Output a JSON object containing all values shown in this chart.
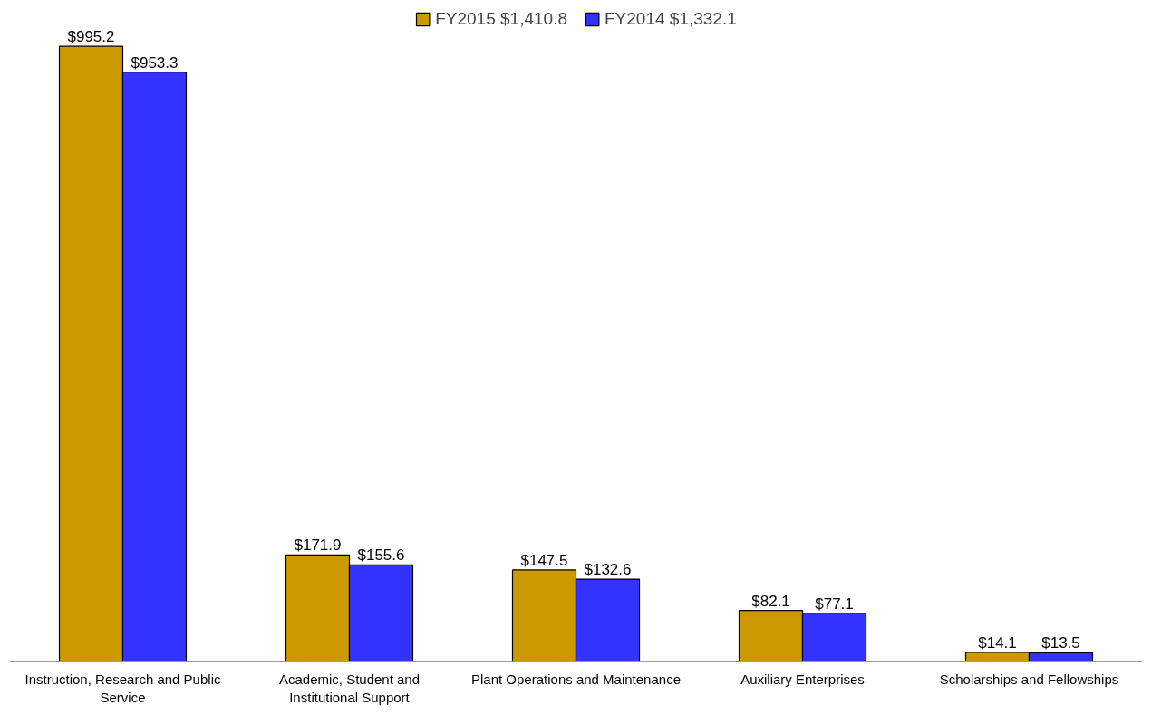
{
  "chart_data": {
    "type": "bar",
    "categories": [
      "Instruction, Research and Public Service",
      "Academic, Student and Institutional Support",
      "Plant Operations and Maintenance",
      "Auxiliary Enterprises",
      "Scholarships and Fellowships"
    ],
    "series": [
      {
        "name": "FY2015 $1,410.8",
        "color": "#cc9900",
        "values": [
          995.2,
          171.9,
          147.5,
          82.1,
          14.1
        ],
        "value_labels": [
          "$995.2",
          "$171.9",
          "$147.5",
          "$82.1",
          "$14.1"
        ]
      },
      {
        "name": "FY2014 $1,332.1",
        "color": "#3333ff",
        "values": [
          953.3,
          155.6,
          132.6,
          77.1,
          13.5
        ],
        "value_labels": [
          "$953.3",
          "$155.6",
          "$132.6",
          "$77.1",
          "$13.5"
        ]
      }
    ],
    "legend": "top",
    "grid": false
  }
}
